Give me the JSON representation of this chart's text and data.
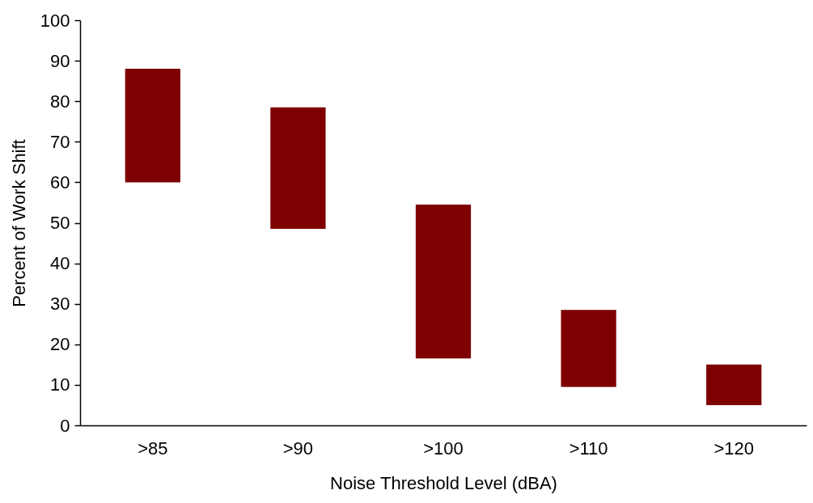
{
  "chart_data": {
    "type": "bar",
    "xlabel": "Noise Threshold Level (dBA)",
    "ylabel": "Percent of Work Shift",
    "categories": [
      ">85",
      ">90",
      ">100",
      ">110",
      ">120"
    ],
    "base": [
      60,
      48.5,
      16.5,
      9.5,
      5
    ],
    "values": [
      28,
      30,
      38,
      19,
      10
    ],
    "color": "#7f0000",
    "ylim": [
      0,
      100
    ],
    "yticks": [
      0,
      10,
      20,
      30,
      40,
      50,
      60,
      70,
      80,
      90,
      100
    ],
    "grid": false
  }
}
